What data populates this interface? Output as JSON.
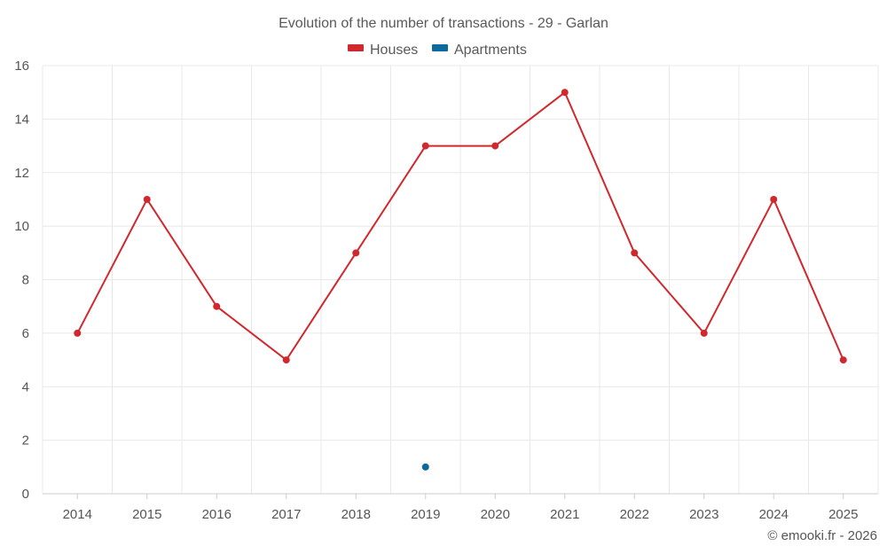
{
  "chart_data": {
    "type": "line",
    "title": "Evolution of the number of transactions - 29 - Garlan",
    "categories": [
      "2014",
      "2015",
      "2016",
      "2017",
      "2018",
      "2019",
      "2020",
      "2021",
      "2022",
      "2023",
      "2024",
      "2025"
    ],
    "series": [
      {
        "name": "Houses",
        "color": "#d0282d",
        "values": [
          6,
          11,
          7,
          5,
          9,
          13,
          13,
          15,
          9,
          6,
          11,
          5
        ]
      },
      {
        "name": "Apartments",
        "color": "#0b6a9b",
        "values": [
          null,
          null,
          null,
          null,
          null,
          1,
          null,
          null,
          null,
          null,
          null,
          null
        ]
      }
    ],
    "y_ticks": [
      0,
      2,
      4,
      6,
      8,
      10,
      12,
      14,
      16
    ],
    "ylim": [
      0,
      16
    ],
    "xlabel": "",
    "ylabel": "",
    "legend": "top-center",
    "grid": true
  },
  "credit": "© emooki.fr - 2026"
}
